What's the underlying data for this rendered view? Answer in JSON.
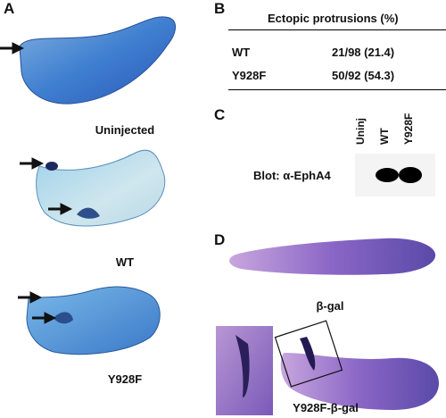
{
  "panel_a": {
    "letter": "A",
    "captions": [
      "Uninjected",
      "WT",
      "Y928F"
    ]
  },
  "panel_b": {
    "letter": "B",
    "header": "Ectopic protrusions (%)",
    "rows": [
      {
        "label": "WT",
        "value": "21/98 (21.4)"
      },
      {
        "label": "Y928F",
        "value": "50/92 (54.3)"
      }
    ]
  },
  "panel_c": {
    "letter": "C",
    "lanes": [
      "Uninj",
      "WT",
      "Y928F"
    ],
    "blot_label": "Blot: α-EphA4"
  },
  "panel_d": {
    "letter": "D",
    "captions": [
      "β-gal",
      "Y928F-β-gal"
    ]
  }
}
